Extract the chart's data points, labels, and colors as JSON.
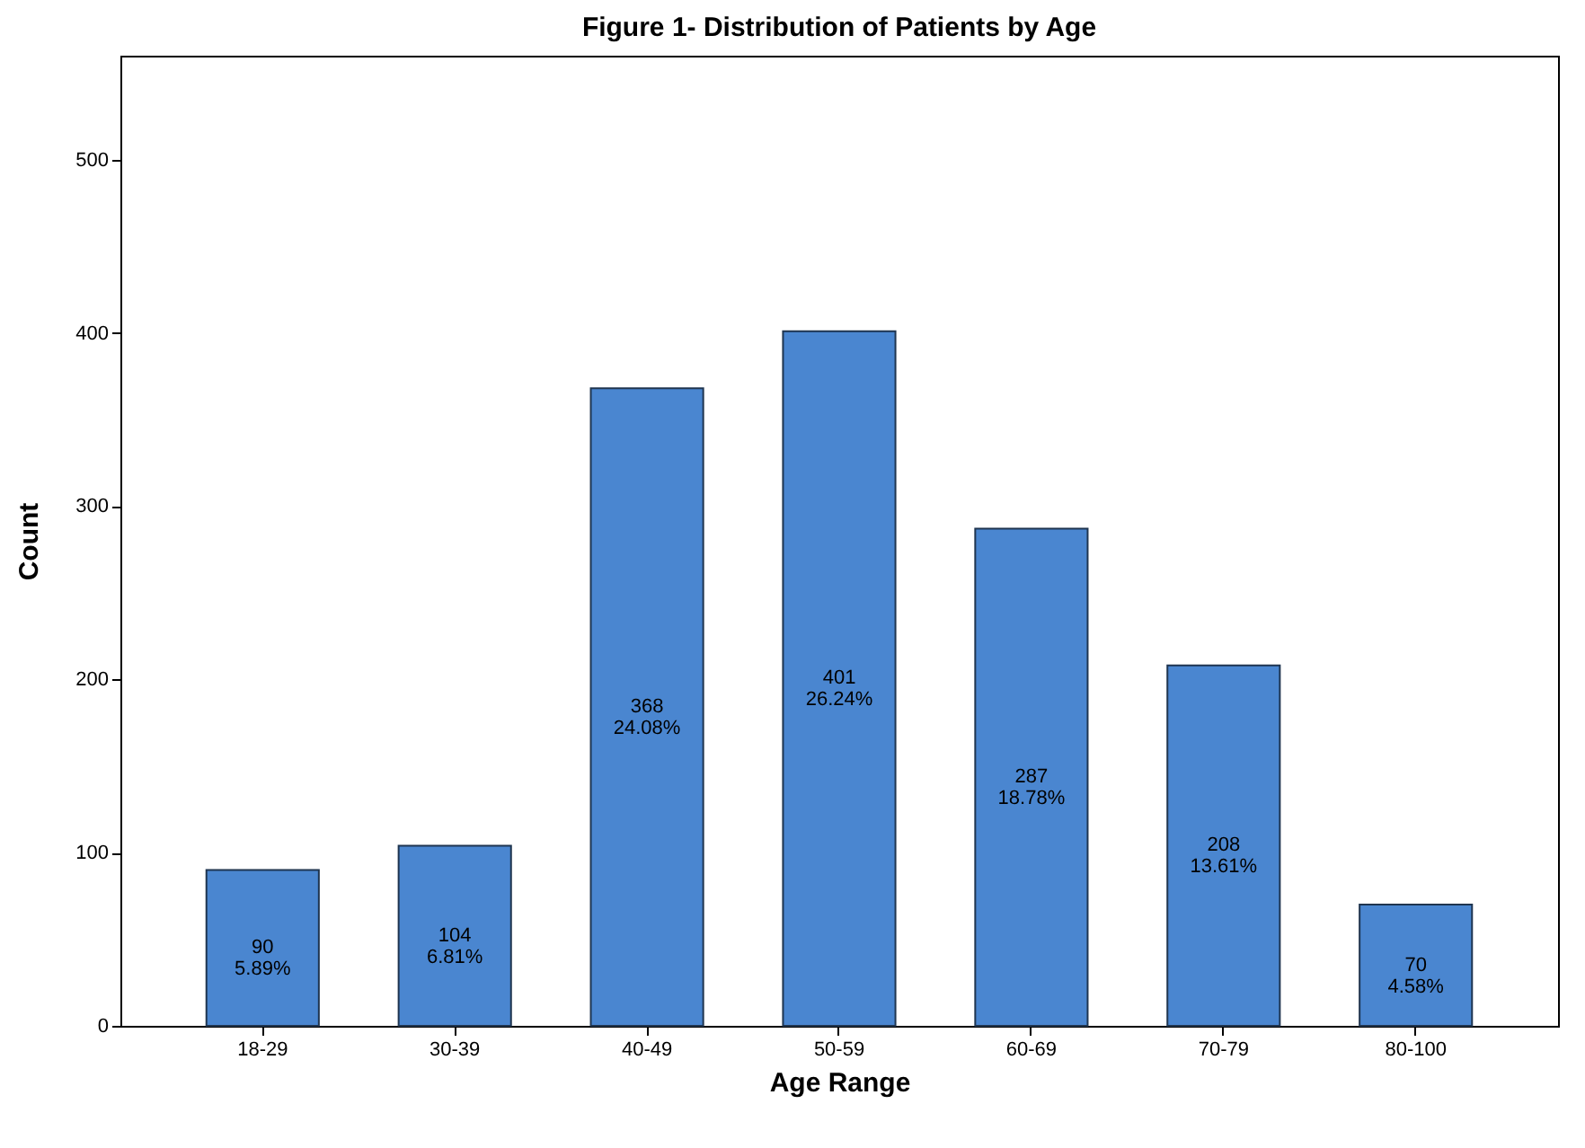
{
  "chart_data": {
    "type": "bar",
    "title": "Figure 1- Distribution of Patients by Age",
    "xlabel": "Age Range",
    "ylabel": "Count",
    "categories": [
      "18-29",
      "30-39",
      "40-49",
      "50-59",
      "60-69",
      "70-79",
      "80-100"
    ],
    "values": [
      90,
      104,
      368,
      401,
      287,
      208,
      70
    ],
    "value_labels": [
      "90\n5.89%",
      "104\n6.81%",
      "368\n24.08%",
      "401\n26.24%",
      "287\n18.78%",
      "208\n13.61%",
      "70\n4.58%"
    ],
    "color": "#4a86d0",
    "ylim": [
      0,
      560
    ],
    "yticks": [
      0,
      100,
      200,
      300,
      400,
      500
    ],
    "grid": false
  }
}
